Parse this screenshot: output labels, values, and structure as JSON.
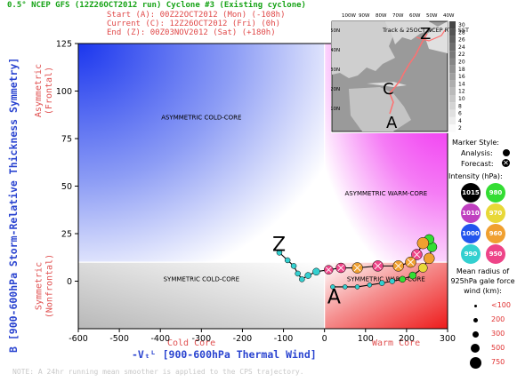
{
  "header": {
    "title": "0.5° NCEP GFS (12Z26OCT2012 run) Cyclone #3 (Existing cyclone)",
    "start": "Start (A):   00Z22OCT2012 (Mon)   (-108h)",
    "current": "Current (C): 12Z26OCT2012 (Fri)   (0h)",
    "end": "End (Z):     00Z03NOV2012 (Sat)   (+180h)"
  },
  "axes": {
    "ylabel_main": "B [900-600hPa Storm-Relative Thickness Symmetry]",
    "ylabel_top": "Asymmetric\n(Frontal)",
    "ylabel_bottom": "Symmetric\n(Nonfrontal)",
    "xlabel_main": "-Vₜᴸ [900-600hPa Thermal Wind]",
    "xlabel_left": "Cold Core",
    "xlabel_right": "Warm Core"
  },
  "regions": {
    "asym_cold": "ASYMMETRIC COLD-CORE",
    "asym_warm": "ASYMMETRIC WARM-CORE",
    "sym_cold": "SYMMETRIC COLD-CORE",
    "sym_warm": "SYMMETRIC WARM-CORE"
  },
  "map_inset": {
    "title": "Track & 25OCT NCEP RTG SST",
    "lon_labels": [
      "100W",
      "90W",
      "80W",
      "70W",
      "60W",
      "50W",
      "40W"
    ],
    "lat_labels": [
      "50N",
      "40N",
      "30N",
      "20N",
      "10N"
    ],
    "sst_scale": [
      "30",
      "28",
      "26",
      "24",
      "22",
      "20",
      "18",
      "16",
      "14",
      "12",
      "10",
      "8",
      "6",
      "4",
      "2"
    ],
    "markers": [
      "Z",
      "C",
      "A"
    ]
  },
  "legend": {
    "marker_style": "Marker Style:",
    "analysis": "Analysis:",
    "forecast": "Forecast:",
    "intensity_title": "Intensity (hPa):",
    "intensity": [
      {
        "label": "1015",
        "color": "#000000",
        "text": "#ffffff"
      },
      {
        "label": "980",
        "color": "#33dd33",
        "text": "#ffffff"
      },
      {
        "label": "1010",
        "color": "#c040c0",
        "text": "#ffffff"
      },
      {
        "label": "970",
        "color": "#e8d838",
        "text": "#ffffff"
      },
      {
        "label": "1000",
        "color": "#2255ee",
        "text": "#ffffff"
      },
      {
        "label": "960",
        "color": "#f0a030",
        "text": "#ffffff"
      },
      {
        "label": "990",
        "color": "#33d0d0",
        "text": "#ffffff"
      },
      {
        "label": "950",
        "color": "#ee4488",
        "text": "#ffffff"
      }
    ],
    "radius_title": "Mean radius of 925hPa gale force wind (km):",
    "radius": [
      "<100",
      "200",
      "300",
      "500",
      "750"
    ]
  },
  "note": "NOTE:  A 24hr running mean smoother is applied to the CPS trajectory.",
  "chart_data": {
    "type": "scatter",
    "title": "0.5° NCEP GFS (12Z26OCT2012 run) Cyclone #3 (Existing cyclone)",
    "xlabel": "-Vₜᴸ [900-600hPa Thermal Wind]",
    "ylabel": "B [900-600hPa Storm-Relative Thickness Symmetry]",
    "xlim": [
      -600,
      300
    ],
    "ylim": [
      -25,
      125
    ],
    "xticks": [
      -600,
      -500,
      -400,
      -300,
      -200,
      -100,
      0,
      100,
      200,
      300
    ],
    "yticks": [
      0,
      25,
      50,
      75,
      100,
      125
    ],
    "grid": false,
    "track_points": {
      "start": {
        "label": "A",
        "x": 20,
        "y": -8
      },
      "end": {
        "label": "Z",
        "x": -110,
        "y": 15
      },
      "path": [
        {
          "x": 20,
          "y": -3
        },
        {
          "x": 50,
          "y": -3
        },
        {
          "x": 80,
          "y": -3
        },
        {
          "x": 110,
          "y": -2
        },
        {
          "x": 140,
          "y": -1
        },
        {
          "x": 165,
          "y": 0
        },
        {
          "x": 190,
          "y": 1
        },
        {
          "x": 215,
          "y": 3
        },
        {
          "x": 240,
          "y": 7
        },
        {
          "x": 255,
          "y": 12
        },
        {
          "x": 262,
          "y": 18
        },
        {
          "x": 255,
          "y": 22
        },
        {
          "x": 240,
          "y": 20
        },
        {
          "x": 225,
          "y": 14
        },
        {
          "x": 210,
          "y": 10
        },
        {
          "x": 180,
          "y": 8
        },
        {
          "x": 130,
          "y": 8
        },
        {
          "x": 80,
          "y": 7
        },
        {
          "x": 40,
          "y": 7
        },
        {
          "x": 10,
          "y": 6
        },
        {
          "x": -20,
          "y": 5
        },
        {
          "x": -40,
          "y": 3
        },
        {
          "x": -55,
          "y": 1
        },
        {
          "x": -65,
          "y": 4
        },
        {
          "x": -75,
          "y": 8
        },
        {
          "x": -90,
          "y": 11
        },
        {
          "x": -110,
          "y": 15
        }
      ]
    }
  }
}
